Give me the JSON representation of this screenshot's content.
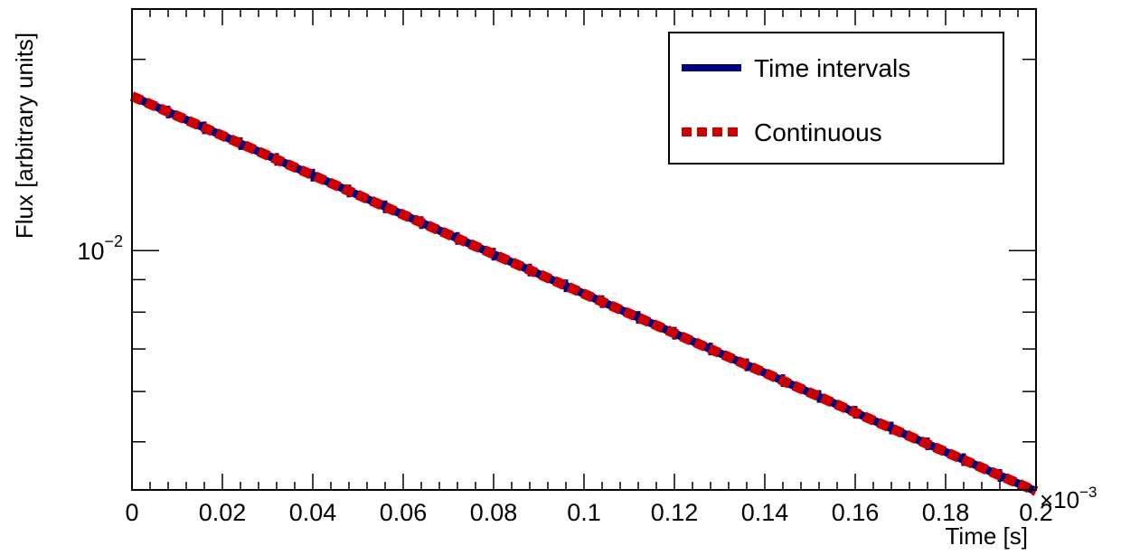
{
  "chart_data": {
    "type": "line",
    "xlabel": "Time [s]",
    "ylabel": "Flux [arbitrary units]",
    "x_multiplier_label": "×10",
    "x_multiplier_exponent": "−3",
    "xlim": [
      0,
      0.2
    ],
    "ylim": [
      0.0042,
      0.024
    ],
    "y_scale": "log",
    "x_ticks": [
      "0",
      "0.02",
      "0.04",
      "0.06",
      "0.08",
      "0.1",
      "0.12",
      "0.14",
      "0.16",
      "0.18",
      "0.2"
    ],
    "y_tick_labels": [
      {
        "base": "10",
        "exponent": "−2"
      }
    ],
    "grid": false,
    "legend_position": "top-right",
    "series": [
      {
        "name": "Time intervals",
        "style": "solid",
        "color": "#000080",
        "x": [
          0,
          0.02,
          0.04,
          0.06,
          0.08,
          0.1,
          0.12,
          0.14,
          0.16,
          0.18,
          0.2
        ],
        "y": [
          0.0175,
          0.01517,
          0.01314,
          0.01139,
          0.00987,
          0.00855,
          0.00741,
          0.00642,
          0.00556,
          0.00482,
          0.00418
        ]
      },
      {
        "name": "Continuous",
        "style": "dashed",
        "color": "#cc0000",
        "x": [
          0,
          0.02,
          0.04,
          0.06,
          0.08,
          0.1,
          0.12,
          0.14,
          0.16,
          0.18,
          0.2
        ],
        "y": [
          0.0175,
          0.01517,
          0.01314,
          0.01139,
          0.00987,
          0.00855,
          0.00741,
          0.00642,
          0.00556,
          0.00482,
          0.00418
        ]
      }
    ]
  }
}
